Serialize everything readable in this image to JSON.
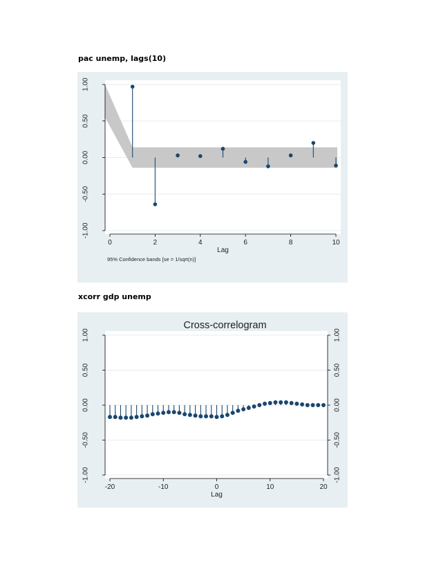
{
  "captions": {
    "pac": "pac unemp, lags(10)",
    "xcorr": "xcorr gdp unemp"
  },
  "colors": {
    "panel_bg": "#e8eff2",
    "plot_bg": "#ffffff",
    "marker": "#1a476f",
    "band": "#c8c8c8",
    "grid": "#e6ecef",
    "axis": "#000000"
  },
  "chart_data": [
    {
      "type": "scatter",
      "subtype": "needle",
      "title": "",
      "xlabel": "Lag",
      "ylabel": "",
      "xlim": [
        0,
        10
      ],
      "ylim": [
        -1,
        1
      ],
      "x_ticks": [
        "0",
        "2",
        "4",
        "6",
        "8",
        "10"
      ],
      "y_ticks": [
        "-1.00",
        "-0.50",
        "0.00",
        "0.50",
        "1.00"
      ],
      "note": "95% Confidence bands [se = 1/sqrt(n)]",
      "confidence_band": 0.14,
      "grid": true,
      "x": [
        1,
        2,
        3,
        4,
        5,
        6,
        7,
        8,
        9,
        10
      ],
      "values": [
        0.97,
        -0.64,
        0.03,
        0.02,
        0.12,
        -0.06,
        -0.12,
        0.03,
        0.2,
        -0.11
      ]
    },
    {
      "type": "scatter",
      "subtype": "needle",
      "title": "Cross-correlogram",
      "xlabel": "Lag",
      "ylabel": "",
      "xlim": [
        -20,
        20
      ],
      "ylim": [
        -1,
        1
      ],
      "x_ticks": [
        "-20",
        "-10",
        "0",
        "10",
        "20"
      ],
      "y_ticks": [
        "-1.00",
        "-0.50",
        "0.00",
        "0.50",
        "1.00"
      ],
      "grid": true,
      "x": [
        -20,
        -19,
        -18,
        -17,
        -16,
        -15,
        -14,
        -13,
        -12,
        -11,
        -10,
        -9,
        -8,
        -7,
        -6,
        -5,
        -4,
        -3,
        -2,
        -1,
        0,
        1,
        2,
        3,
        4,
        5,
        6,
        7,
        8,
        9,
        10,
        11,
        12,
        13,
        14,
        15,
        16,
        17,
        18,
        19,
        20
      ],
      "values": [
        -0.17,
        -0.17,
        -0.18,
        -0.18,
        -0.18,
        -0.17,
        -0.16,
        -0.15,
        -0.13,
        -0.12,
        -0.11,
        -0.1,
        -0.1,
        -0.11,
        -0.13,
        -0.14,
        -0.15,
        -0.16,
        -0.16,
        -0.16,
        -0.17,
        -0.16,
        -0.14,
        -0.11,
        -0.08,
        -0.06,
        -0.04,
        -0.02,
        0.0,
        0.02,
        0.03,
        0.04,
        0.04,
        0.04,
        0.03,
        0.02,
        0.01,
        0.0,
        0.0,
        0.0,
        0.0
      ]
    }
  ]
}
